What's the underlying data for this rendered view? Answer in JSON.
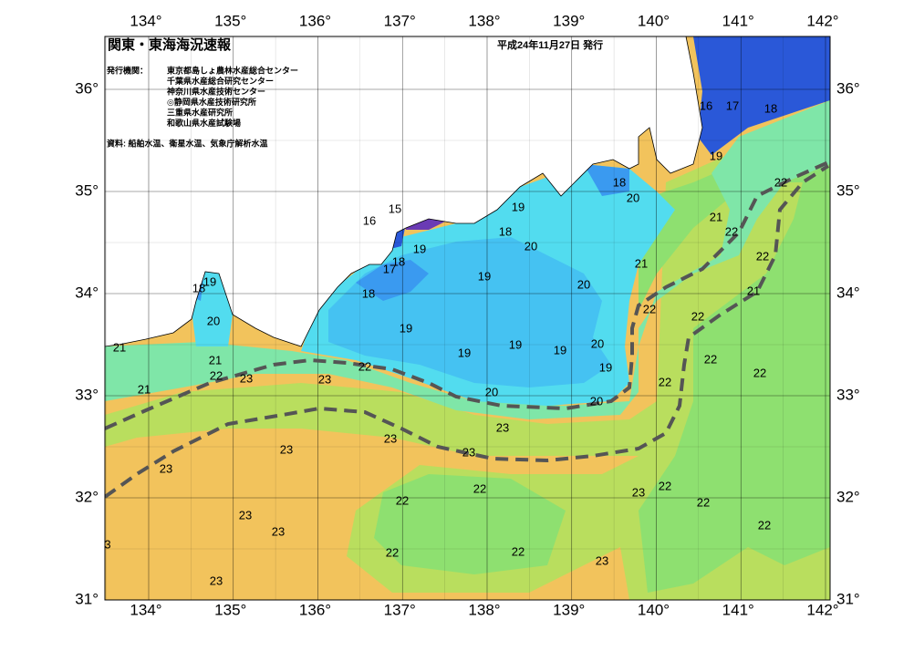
{
  "header": {
    "title": "関東・東海海況速報",
    "date": "平成24年11月27日 発行"
  },
  "agencies": {
    "label": "発行機関：",
    "items": [
      "東京都島しょ農林水産総合センター",
      "千葉県水産総合研究センター",
      "神奈川県水産技術センター",
      "◎静岡県水産技術研究所",
      "三重県水産研究所",
      "和歌山県水産試験場"
    ]
  },
  "source": "資料: 船舶水温、衛星水温、気象庁解析水温",
  "axes": {
    "longitude": [
      "134°",
      "135°",
      "136°",
      "137°",
      "138°",
      "139°",
      "140°",
      "141°",
      "142°"
    ],
    "latitude": [
      "36°",
      "35°",
      "34°",
      "33°",
      "32°",
      "31°"
    ]
  },
  "contour_labels": [
    16,
    17,
    18,
    19,
    22,
    18,
    20,
    21,
    22,
    19,
    18,
    16,
    15,
    20,
    19,
    21,
    22,
    18,
    17,
    19,
    20,
    19,
    18,
    21,
    18,
    22,
    22,
    20,
    19,
    20,
    21,
    19,
    19,
    19,
    22,
    21,
    22,
    19,
    22,
    23,
    23,
    22,
    22,
    21,
    20,
    20,
    23,
    23,
    23,
    23,
    23,
    22,
    22,
    23,
    22,
    22,
    23,
    22,
    23,
    3,
    22,
    22,
    23,
    23
  ]
}
